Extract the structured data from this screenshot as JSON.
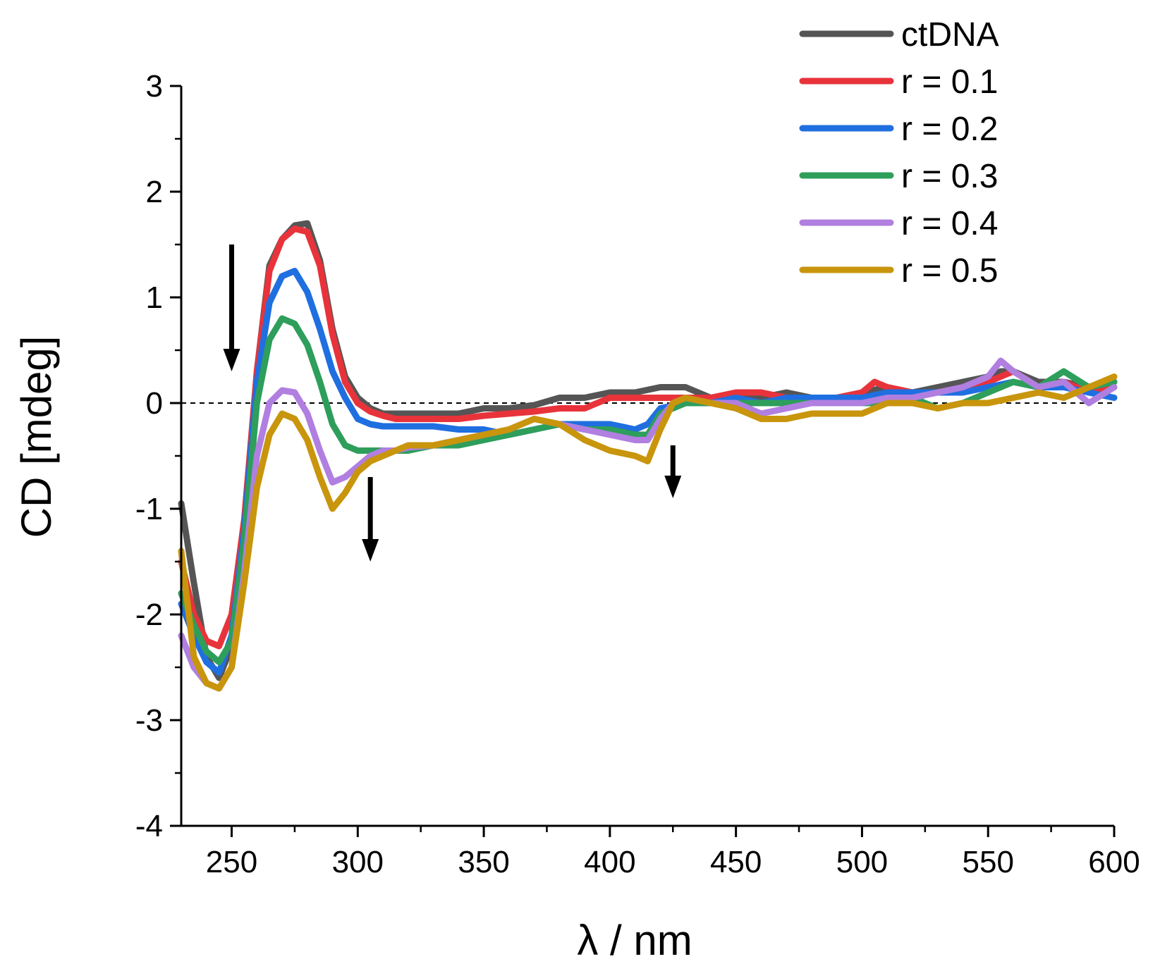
{
  "chart_data": {
    "type": "line",
    "xlabel": "λ / nm",
    "ylabel": "CD [mdeg]",
    "xlim": [
      230,
      600
    ],
    "ylim": [
      -4,
      3
    ],
    "x_ticks": [
      250,
      300,
      350,
      400,
      450,
      500,
      550,
      600
    ],
    "y_ticks": [
      -4,
      -3,
      -2,
      -1,
      0,
      1,
      2,
      3
    ],
    "grid": false,
    "legend_position": "top-right",
    "zero_reference_line": 0,
    "annotations": [
      {
        "type": "arrow-down",
        "x": 250,
        "y_from": 1.5,
        "y_to": 0.3
      },
      {
        "type": "arrow-down",
        "x": 305,
        "y_from": -0.7,
        "y_to": -1.5
      },
      {
        "type": "arrow-down",
        "x": 425,
        "y_from": -0.4,
        "y_to": -0.9
      }
    ],
    "series": [
      {
        "name": "ctDNA",
        "color": "#555555",
        "x": [
          230,
          235,
          240,
          245,
          250,
          255,
          260,
          265,
          270,
          275,
          280,
          285,
          290,
          295,
          300,
          305,
          310,
          315,
          320,
          330,
          340,
          350,
          360,
          370,
          380,
          390,
          400,
          410,
          420,
          430,
          440,
          450,
          460,
          470,
          480,
          490,
          500,
          510,
          520,
          530,
          540,
          550,
          555,
          560,
          570,
          580,
          590,
          600
        ],
        "y": [
          -0.95,
          -1.7,
          -2.4,
          -2.6,
          -2.3,
          -1.3,
          0.3,
          1.3,
          1.55,
          1.68,
          1.7,
          1.35,
          0.7,
          0.25,
          0.05,
          -0.05,
          -0.1,
          -0.1,
          -0.1,
          -0.1,
          -0.1,
          -0.05,
          -0.05,
          -0.02,
          0.05,
          0.05,
          0.1,
          0.1,
          0.15,
          0.15,
          0.05,
          0.05,
          0.05,
          0.1,
          0.05,
          0.05,
          0.1,
          0.15,
          0.1,
          0.15,
          0.2,
          0.25,
          0.3,
          0.3,
          0.2,
          0.2,
          0.15,
          0.2
        ]
      },
      {
        "name": "r = 0.1",
        "color": "#e8333b",
        "x": [
          230,
          235,
          240,
          245,
          250,
          255,
          260,
          265,
          270,
          275,
          280,
          285,
          290,
          295,
          300,
          305,
          310,
          315,
          320,
          330,
          340,
          350,
          360,
          370,
          380,
          390,
          400,
          410,
          420,
          430,
          440,
          450,
          460,
          470,
          480,
          490,
          500,
          505,
          510,
          520,
          530,
          540,
          550,
          555,
          560,
          570,
          580,
          590,
          600
        ],
        "y": [
          -1.5,
          -2.0,
          -2.25,
          -2.3,
          -2.0,
          -1.1,
          0.3,
          1.25,
          1.55,
          1.65,
          1.62,
          1.3,
          0.65,
          0.2,
          0.0,
          -0.08,
          -0.12,
          -0.15,
          -0.15,
          -0.15,
          -0.15,
          -0.12,
          -0.1,
          -0.08,
          -0.05,
          -0.05,
          0.05,
          0.05,
          0.05,
          0.05,
          0.05,
          0.1,
          0.1,
          0.05,
          0.05,
          0.05,
          0.1,
          0.2,
          0.15,
          0.1,
          0.1,
          0.15,
          0.2,
          0.25,
          0.3,
          0.15,
          0.2,
          0.1,
          0.15
        ]
      },
      {
        "name": "r = 0.2",
        "color": "#1f6fe0",
        "x": [
          230,
          235,
          240,
          245,
          250,
          255,
          260,
          265,
          270,
          275,
          280,
          285,
          290,
          295,
          300,
          305,
          310,
          315,
          320,
          330,
          340,
          350,
          360,
          370,
          380,
          390,
          400,
          410,
          415,
          420,
          430,
          440,
          450,
          460,
          470,
          480,
          490,
          500,
          510,
          520,
          530,
          540,
          550,
          560,
          570,
          580,
          590,
          600
        ],
        "y": [
          -1.9,
          -2.2,
          -2.45,
          -2.55,
          -2.2,
          -1.2,
          0.2,
          0.95,
          1.2,
          1.25,
          1.05,
          0.7,
          0.3,
          0.05,
          -0.15,
          -0.2,
          -0.22,
          -0.22,
          -0.22,
          -0.22,
          -0.25,
          -0.25,
          -0.3,
          -0.25,
          -0.2,
          -0.2,
          -0.2,
          -0.25,
          -0.2,
          -0.05,
          0.0,
          0.0,
          0.05,
          0.0,
          0.05,
          0.05,
          0.05,
          0.05,
          0.1,
          0.1,
          0.1,
          0.1,
          0.15,
          0.2,
          0.15,
          0.15,
          0.1,
          0.05
        ]
      },
      {
        "name": "r = 0.3",
        "color": "#2e9e5b",
        "x": [
          230,
          235,
          240,
          245,
          250,
          255,
          260,
          265,
          270,
          275,
          280,
          285,
          290,
          295,
          300,
          305,
          310,
          315,
          320,
          330,
          340,
          350,
          360,
          370,
          380,
          390,
          400,
          410,
          415,
          420,
          430,
          440,
          450,
          460,
          470,
          480,
          490,
          500,
          510,
          520,
          530,
          540,
          550,
          560,
          570,
          580,
          590,
          600
        ],
        "y": [
          -1.8,
          -2.1,
          -2.35,
          -2.45,
          -2.25,
          -1.3,
          0.0,
          0.6,
          0.8,
          0.75,
          0.55,
          0.2,
          -0.2,
          -0.4,
          -0.45,
          -0.45,
          -0.45,
          -0.45,
          -0.45,
          -0.4,
          -0.4,
          -0.35,
          -0.3,
          -0.25,
          -0.2,
          -0.25,
          -0.25,
          -0.3,
          -0.3,
          -0.1,
          0.0,
          0.0,
          0.0,
          0.0,
          0.0,
          0.0,
          0.0,
          0.0,
          0.0,
          0.05,
          -0.05,
          0.0,
          0.1,
          0.2,
          0.15,
          0.3,
          0.15,
          0.2
        ]
      },
      {
        "name": "r = 0.4",
        "color": "#b07fe0",
        "x": [
          230,
          235,
          240,
          245,
          250,
          255,
          260,
          265,
          270,
          275,
          280,
          285,
          290,
          295,
          300,
          305,
          310,
          315,
          320,
          330,
          340,
          350,
          360,
          370,
          380,
          390,
          400,
          410,
          415,
          420,
          425,
          430,
          440,
          450,
          460,
          470,
          480,
          490,
          500,
          510,
          520,
          530,
          540,
          550,
          555,
          560,
          570,
          580,
          590,
          600
        ],
        "y": [
          -2.2,
          -2.5,
          -2.65,
          -2.7,
          -2.5,
          -1.6,
          -0.5,
          0.0,
          0.12,
          0.1,
          -0.1,
          -0.45,
          -0.75,
          -0.7,
          -0.6,
          -0.5,
          -0.45,
          -0.45,
          -0.42,
          -0.4,
          -0.35,
          -0.3,
          -0.25,
          -0.15,
          -0.2,
          -0.25,
          -0.3,
          -0.35,
          -0.35,
          -0.15,
          0.0,
          0.05,
          0.0,
          0.0,
          -0.1,
          -0.05,
          0.0,
          0.0,
          0.0,
          0.05,
          0.05,
          0.1,
          0.15,
          0.25,
          0.4,
          0.3,
          0.15,
          0.2,
          0.0,
          0.15
        ]
      },
      {
        "name": "r = 0.5",
        "color": "#c8950c",
        "x": [
          230,
          235,
          240,
          245,
          250,
          255,
          260,
          265,
          270,
          275,
          280,
          285,
          290,
          295,
          300,
          305,
          310,
          315,
          320,
          330,
          340,
          350,
          360,
          370,
          380,
          390,
          400,
          410,
          415,
          420,
          425,
          430,
          440,
          450,
          460,
          470,
          480,
          490,
          500,
          510,
          520,
          530,
          540,
          550,
          560,
          570,
          580,
          590,
          600
        ],
        "y": [
          -1.4,
          -2.4,
          -2.65,
          -2.7,
          -2.5,
          -1.7,
          -0.8,
          -0.3,
          -0.1,
          -0.15,
          -0.35,
          -0.7,
          -1.0,
          -0.85,
          -0.65,
          -0.55,
          -0.5,
          -0.45,
          -0.4,
          -0.4,
          -0.35,
          -0.3,
          -0.25,
          -0.15,
          -0.2,
          -0.35,
          -0.45,
          -0.5,
          -0.55,
          -0.25,
          0.0,
          0.05,
          0.0,
          -0.05,
          -0.15,
          -0.15,
          -0.1,
          -0.1,
          -0.1,
          0.0,
          0.0,
          -0.05,
          0.0,
          0.0,
          0.05,
          0.1,
          0.05,
          0.15,
          0.25
        ]
      }
    ]
  }
}
